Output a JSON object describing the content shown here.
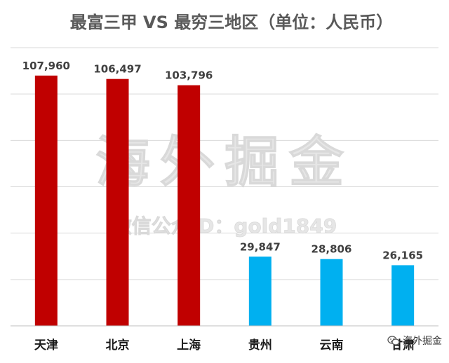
{
  "chart_data": {
    "type": "bar",
    "title": "最富三甲 VS 最穷三地区（单位：人民币）",
    "categories": [
      "天津",
      "北京",
      "上海",
      "贵州",
      "云南",
      "甘肃"
    ],
    "values": [
      107960,
      106497,
      103796,
      29847,
      28806,
      26165
    ],
    "value_labels": [
      "107,960",
      "106,497",
      "103,796",
      "29,847",
      "28,806",
      "26,165"
    ],
    "colors": [
      "#c00000",
      "#c00000",
      "#c00000",
      "#00b0f0",
      "#00b0f0",
      "#00b0f0"
    ],
    "ylim": [
      0,
      120000
    ],
    "grid": true,
    "legend": "none"
  },
  "watermark": {
    "main": "海外掘金",
    "sub": "微信公众ID：gold1849"
  },
  "corner_mark": {
    "icon": "wechat-icon",
    "label": "海外掘金"
  }
}
